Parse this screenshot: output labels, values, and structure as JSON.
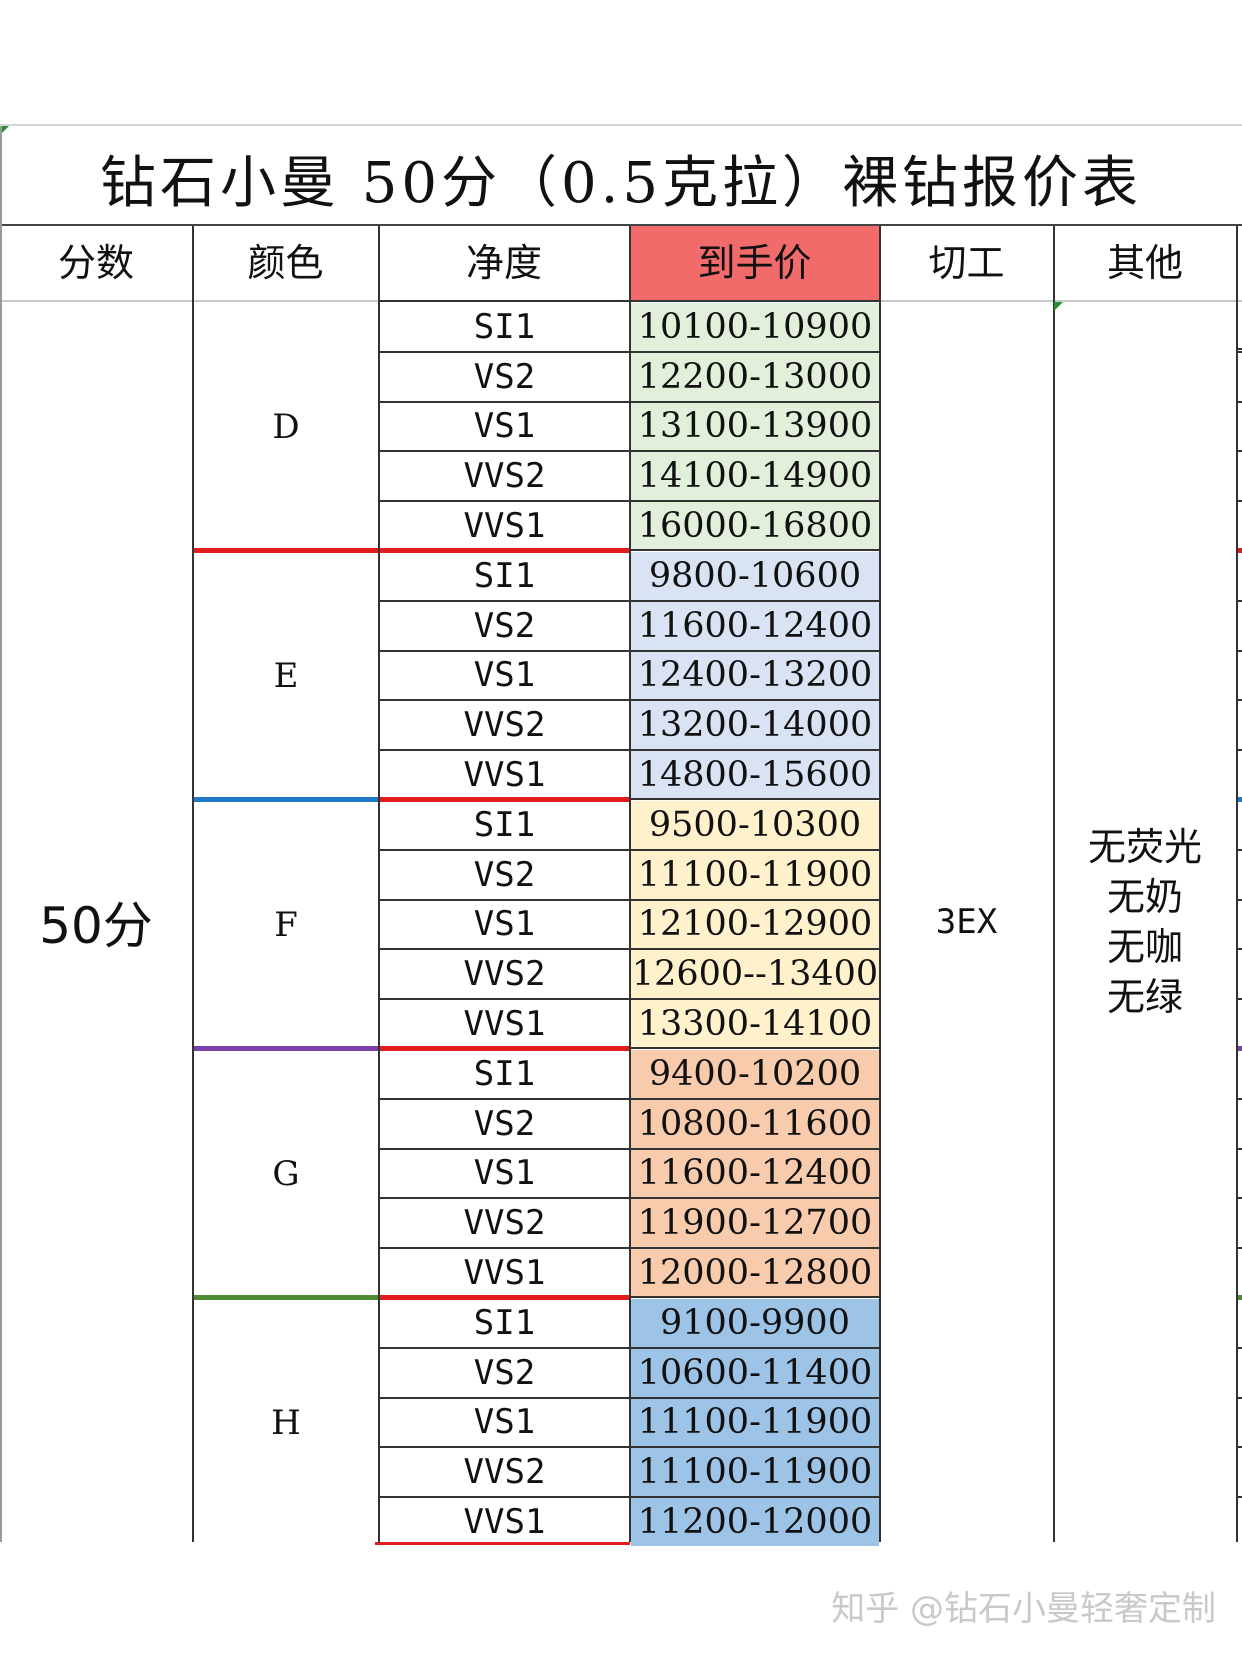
{
  "title": "钻石小曼  50分（0.5克拉）裸钻报价表",
  "headers": {
    "points": "分数",
    "color": "颜色",
    "clarity": "净度",
    "price": "到手价",
    "cut": "切工",
    "other": "其他"
  },
  "points_value": "50分",
  "cut_value": "3EX",
  "other_lines": [
    "无荧光",
    "无奶",
    "无咖",
    "无绿"
  ],
  "groups": [
    {
      "color": "D",
      "fill": "#e2efda",
      "separator": "#e01c1c",
      "rows": [
        {
          "clarity": "SI1",
          "price": "10100-10900"
        },
        {
          "clarity": "VS2",
          "price": "12200-13000"
        },
        {
          "clarity": "VS1",
          "price": "13100-13900"
        },
        {
          "clarity": "VVS2",
          "price": "14100-14900"
        },
        {
          "clarity": "VVS1",
          "price": "16000-16800"
        }
      ]
    },
    {
      "color": "E",
      "fill": "#dae3f3",
      "separator": "#1f78c8",
      "rows": [
        {
          "clarity": "SI1",
          "price": "9800-10600"
        },
        {
          "clarity": "VS2",
          "price": "11600-12400"
        },
        {
          "clarity": "VS1",
          "price": "12400-13200"
        },
        {
          "clarity": "VVS2",
          "price": "13200-14000"
        },
        {
          "clarity": "VVS1",
          "price": "14800-15600"
        }
      ]
    },
    {
      "color": "F",
      "fill": "#fff1cc",
      "separator": "#7b3fa8",
      "rows": [
        {
          "clarity": "SI1",
          "price": "9500-10300"
        },
        {
          "clarity": "VS2",
          "price": "11100-11900"
        },
        {
          "clarity": "VS1",
          "price": "12100-12900"
        },
        {
          "clarity": "VVS2",
          "price": "12600--13400"
        },
        {
          "clarity": "VVS1",
          "price": "13300-14100"
        }
      ]
    },
    {
      "color": "G",
      "fill": "#f8cbad",
      "separator": "#4f8a34",
      "rows": [
        {
          "clarity": "SI1",
          "price": "9400-10200"
        },
        {
          "clarity": "VS2",
          "price": "10800-11600"
        },
        {
          "clarity": "VS1",
          "price": "11600-12400"
        },
        {
          "clarity": "VVS2",
          "price": "11900-12700"
        },
        {
          "clarity": "VVS1",
          "price": "12000-12800"
        }
      ]
    },
    {
      "color": "H",
      "fill": "#9dc3e6",
      "separator": "",
      "rows": [
        {
          "clarity": "SI1",
          "price": "9100-9900"
        },
        {
          "clarity": "VS2",
          "price": "10600-11400"
        },
        {
          "clarity": "VS1",
          "price": "11100-11900"
        },
        {
          "clarity": "VVS2",
          "price": "11100-11900"
        },
        {
          "clarity": "VVS1",
          "price": "11200-12000"
        }
      ]
    }
  ],
  "clarity_separator_color": "#e01c1c",
  "watermark": "知乎 @钻石小曼轻奢定制"
}
